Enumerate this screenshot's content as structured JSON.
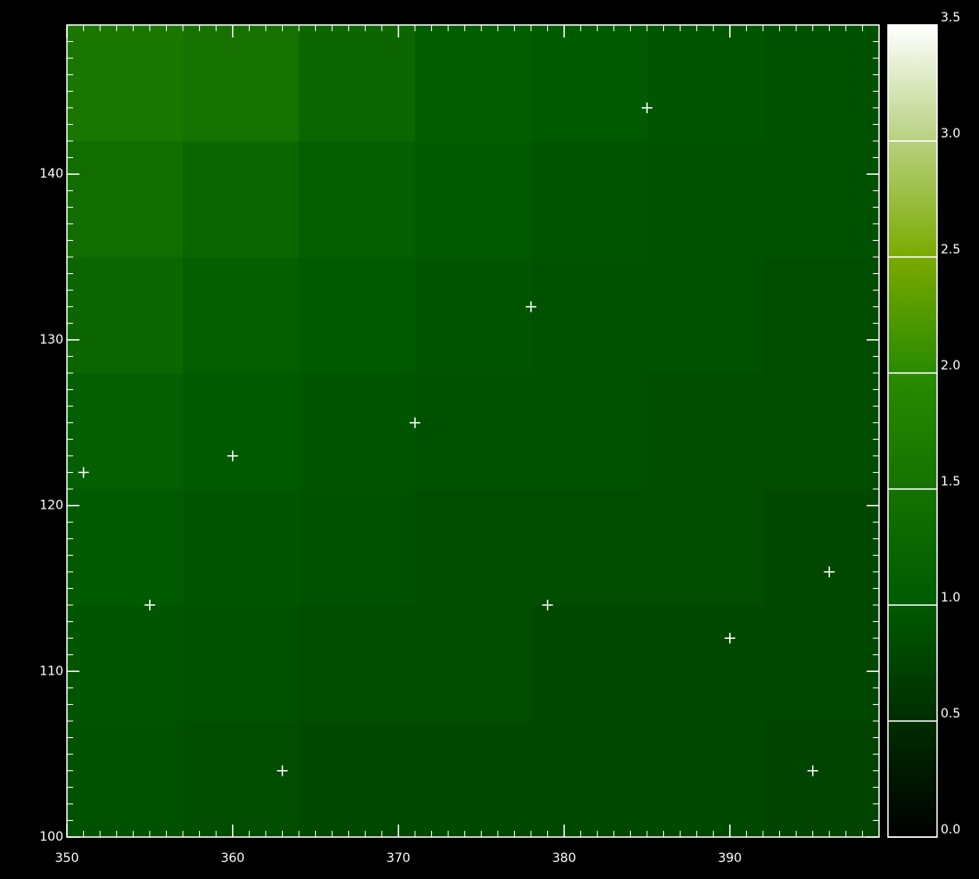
{
  "chart_data": {
    "type": "heatmap",
    "xlim": [
      350,
      399
    ],
    "ylim": [
      100,
      149
    ],
    "xticks": [
      350,
      360,
      370,
      380,
      390
    ],
    "yticks": [
      100,
      110,
      120,
      130,
      140
    ],
    "minor_step": 1,
    "x_bins": [
      350,
      357,
      364,
      371,
      378,
      385,
      392,
      399
    ],
    "y_bins": [
      100,
      107,
      114,
      121,
      128,
      135,
      142,
      149
    ],
    "z": [
      [
        0.9,
        0.85,
        0.8,
        0.8,
        0.8,
        0.8,
        0.75
      ],
      [
        0.95,
        0.9,
        0.85,
        0.85,
        0.8,
        0.8,
        0.8
      ],
      [
        1.0,
        0.95,
        0.9,
        0.85,
        0.85,
        0.85,
        0.8
      ],
      [
        1.1,
        1.0,
        0.95,
        0.9,
        0.9,
        0.85,
        0.85
      ],
      [
        1.25,
        1.1,
        1.0,
        0.95,
        0.9,
        0.9,
        0.85
      ],
      [
        1.4,
        1.25,
        1.1,
        1.0,
        0.95,
        0.9,
        0.9
      ],
      [
        1.6,
        1.5,
        1.25,
        1.05,
        1.0,
        0.95,
        0.9
      ]
    ],
    "colormap": [
      {
        "value": 0,
        "color": "#000000"
      },
      {
        "value": 1.0,
        "color": "#005a00"
      },
      {
        "value": 2.0,
        "color": "#2a8a00"
      },
      {
        "value": 2.5,
        "color": "#7aaa00"
      },
      {
        "value": 3.0,
        "color": "#b8d080"
      },
      {
        "value": 3.5,
        "color": "#ffffff"
      }
    ],
    "clim": [
      0,
      3.5
    ],
    "cticks": [
      {
        "value": 0,
        "label": "0.0"
      },
      0.5,
      {
        "value": 1,
        "label": "1.0"
      },
      1.5,
      {
        "value": 2,
        "label": "2.0"
      },
      2.5,
      {
        "value": 3,
        "label": "3.0"
      },
      3.5
    ],
    "markers": {
      "color": "#ffffff",
      "x": [
        351,
        355,
        360,
        363,
        371,
        378,
        379,
        385,
        390,
        395,
        396
      ],
      "y": [
        122,
        114,
        123,
        104,
        125,
        132,
        114,
        144,
        112,
        104,
        116
      ]
    }
  }
}
